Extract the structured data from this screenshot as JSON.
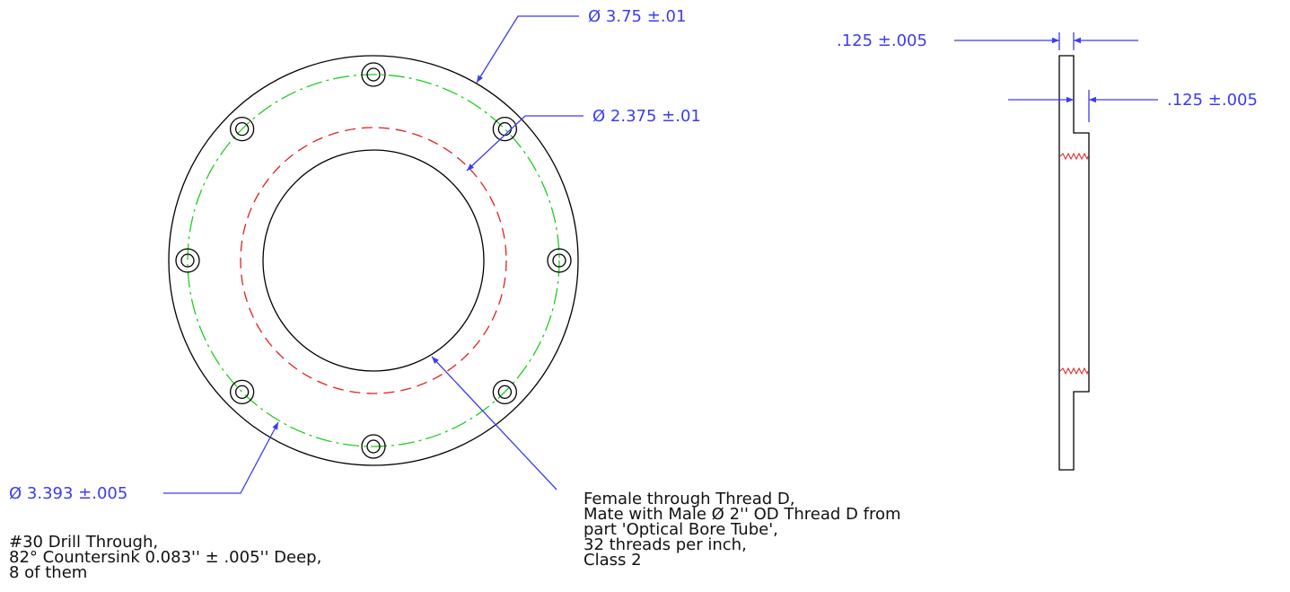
{
  "dimensions": {
    "outer_diameter": "Ø 3.75 ±.01",
    "thread_diameter": "Ø 2.375 ±.01",
    "bolt_circle": "Ø 3.393 ±.005",
    "plate_thickness": ".125 ±.005",
    "step_thickness": ".125 ±.005"
  },
  "notes": {
    "drill": [
      "#30 Drill Through,",
      "82° Countersink 0.083'' ± .005'' Deep,",
      "8 of them"
    ],
    "thread": [
      "Female through Thread D,",
      "Mate with Male Ø 2'' OD Thread D from",
      "part 'Optical Bore Tube',",
      "32 threads per inch,",
      "Class 2"
    ]
  }
}
